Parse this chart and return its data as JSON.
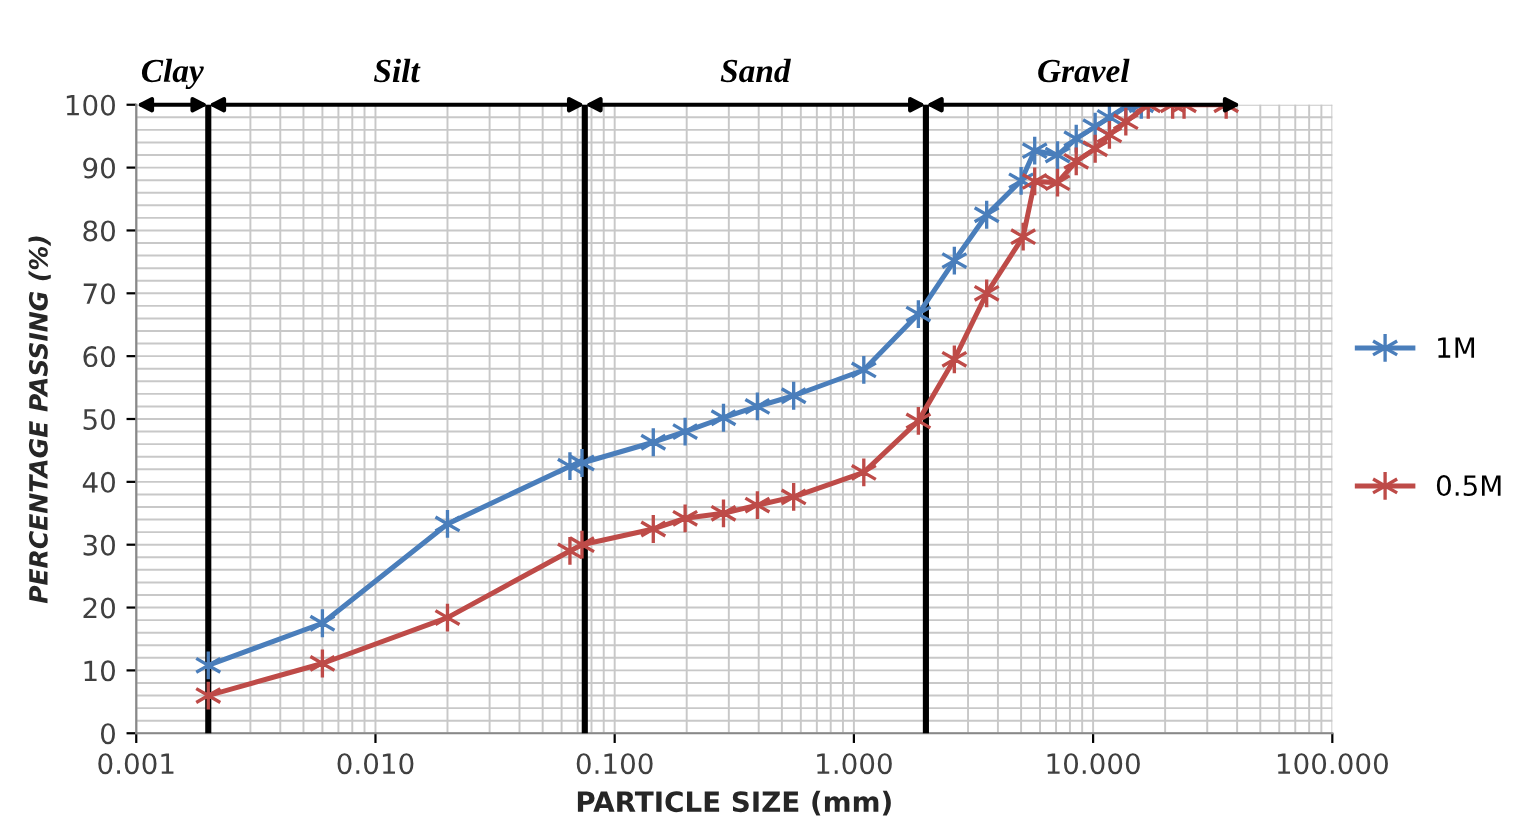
{
  "chart_data": {
    "type": "line",
    "xlabel": "PARTICLE SIZE (mm)",
    "ylabel": "PERCENTAGE PASSING (%)",
    "log": "x",
    "xlim": [
      0.001,
      100
    ],
    "xticks": [
      {
        "value": 0.001,
        "label": "0.001"
      },
      {
        "value": 0.01,
        "label": "0.010"
      },
      {
        "value": 0.1,
        "label": "0.100"
      },
      {
        "value": 1,
        "label": "1.000"
      },
      {
        "value": 10,
        "label": "10.000"
      },
      {
        "value": 100,
        "label": "100.000"
      }
    ],
    "ylim": [
      0,
      100
    ],
    "yticks": [
      0,
      10,
      20,
      30,
      40,
      50,
      60,
      70,
      80,
      90,
      100
    ],
    "grid": true,
    "legend": "right",
    "marker": "cross",
    "line_style": "solid",
    "series": [
      {
        "name": "1M",
        "color": "#4a7ebb",
        "x": [
          0.002,
          0.006,
          0.02,
          0.065,
          0.073,
          0.145,
          0.197,
          0.285,
          0.395,
          0.56,
          1.1,
          1.86,
          2.63,
          3.59,
          5.0,
          5.7,
          7.1,
          8.5,
          10.2,
          11.7,
          13.7,
          15.9
        ],
        "values": [
          10.8,
          17.5,
          33.3,
          42.5,
          43,
          46.3,
          48,
          50.2,
          52,
          53.7,
          57.8,
          66.7,
          75.2,
          82.5,
          87.9,
          92.7,
          92,
          94.6,
          96.5,
          98,
          99.7,
          100
        ]
      },
      {
        "name": "0.5M",
        "color": "#be4b48",
        "x": [
          0.002,
          0.006,
          0.02,
          0.065,
          0.073,
          0.145,
          0.197,
          0.285,
          0.395,
          0.56,
          1.1,
          1.86,
          2.63,
          3.59,
          5.1,
          5.7,
          7.1,
          8.5,
          10.2,
          11.7,
          13.7,
          17,
          21.5,
          24,
          36
        ],
        "values": [
          6,
          11.1,
          18.4,
          29,
          30,
          32.5,
          34.2,
          35,
          36.3,
          37.6,
          41.5,
          49.7,
          59.5,
          70,
          79,
          87.8,
          87.6,
          91,
          93,
          95.2,
          97.3,
          100,
          100,
          100,
          100
        ]
      }
    ],
    "ref_lines": [
      {
        "axis": "x",
        "value": 0.002,
        "color": "#000000"
      },
      {
        "axis": "x",
        "value": 0.075,
        "color": "#000000"
      },
      {
        "axis": "x",
        "value": 2,
        "color": "#000000"
      }
    ],
    "annotations": [
      "Clay",
      "Silt",
      "Sand",
      "Gravel"
    ]
  }
}
